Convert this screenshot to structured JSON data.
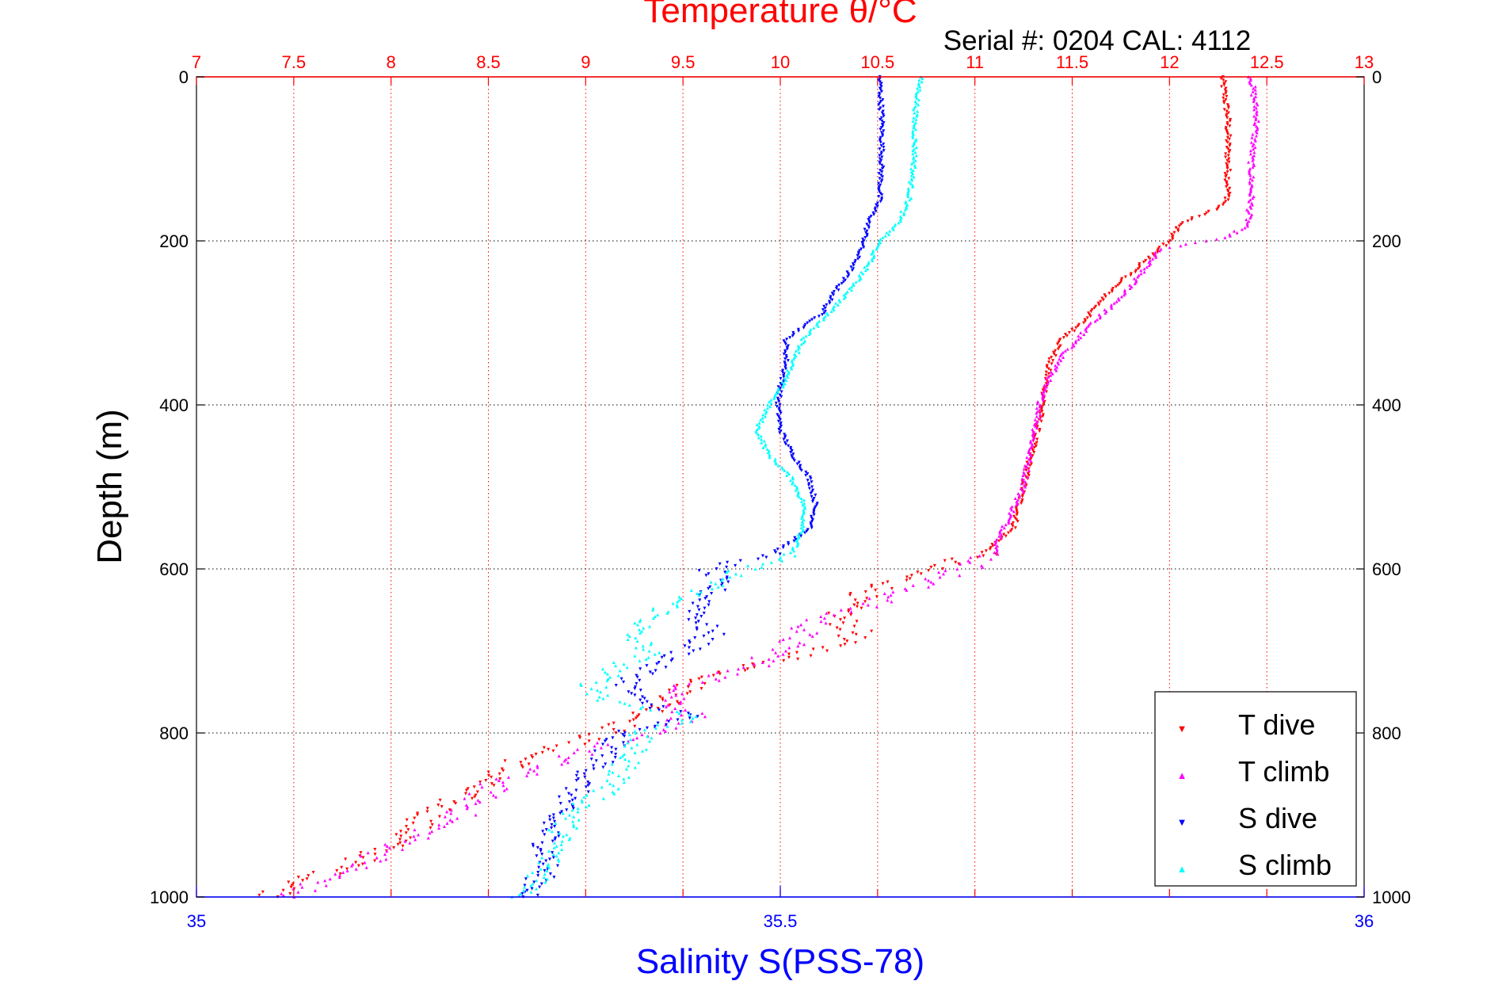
{
  "chart_data": {
    "type": "scatter",
    "title": "Temperature θ/°C",
    "annotation": "Serial #: 0204  CAL: 4112",
    "ylabel": "Depth (m)",
    "xlabel": "Salinity S(PSS-78)",
    "y_axis": {
      "range": [
        0,
        1000
      ],
      "reversed": true,
      "ticks": [
        0,
        200,
        400,
        600,
        800,
        1000
      ]
    },
    "x_top": {
      "label": "Temperature θ/°C",
      "range": [
        7,
        13
      ],
      "ticks": [
        7,
        7.5,
        8,
        8.5,
        9,
        9.5,
        10,
        10.5,
        11,
        11.5,
        12,
        12.5,
        13
      ],
      "tick_labels": [
        "7",
        "7.5",
        "8",
        "8.5",
        "9",
        "9.5",
        "10",
        "10.5",
        "11",
        "11.5",
        "12",
        "12.5",
        "13"
      ],
      "color": "#ff0000"
    },
    "x_bottom": {
      "label": "Salinity S(PSS-78)",
      "range": [
        35,
        36
      ],
      "ticks": [
        35,
        35.5,
        36
      ],
      "tick_labels": [
        "35",
        "35.5",
        "36"
      ],
      "color": "#0000ff"
    },
    "grid": true,
    "legend": {
      "placement": "bottom-right"
    },
    "series": [
      {
        "name": "T dive",
        "axis": "temperature",
        "marker": "triangle-down",
        "color": "#ff0000",
        "profile": [
          [
            0,
            12.27
          ],
          [
            50,
            12.3
          ],
          [
            100,
            12.3
          ],
          [
            150,
            12.3
          ],
          [
            160,
            12.25
          ],
          [
            180,
            12.05
          ],
          [
            200,
            12.0
          ],
          [
            230,
            11.85
          ],
          [
            260,
            11.7
          ],
          [
            300,
            11.55
          ],
          [
            320,
            11.45
          ],
          [
            350,
            11.38
          ],
          [
            400,
            11.35
          ],
          [
            450,
            11.3
          ],
          [
            500,
            11.25
          ],
          [
            550,
            11.2
          ],
          [
            580,
            11.05
          ],
          [
            600,
            10.75
          ],
          [
            620,
            10.55
          ],
          [
            640,
            10.35
          ],
          [
            660,
            10.3
          ],
          [
            680,
            10.4
          ],
          [
            700,
            10.2
          ],
          [
            720,
            9.85
          ],
          [
            740,
            9.55
          ],
          [
            760,
            9.45
          ],
          [
            780,
            9.3
          ],
          [
            800,
            9.1
          ],
          [
            830,
            8.7
          ],
          [
            870,
            8.4
          ],
          [
            900,
            8.2
          ],
          [
            930,
            8.05
          ],
          [
            960,
            7.8
          ],
          [
            990,
            7.45
          ],
          [
            1000,
            7.4
          ]
        ]
      },
      {
        "name": "T climb",
        "axis": "temperature",
        "marker": "triangle-up",
        "color": "#ff00ff",
        "profile": [
          [
            0,
            12.42
          ],
          [
            50,
            12.45
          ],
          [
            100,
            12.42
          ],
          [
            150,
            12.42
          ],
          [
            180,
            12.4
          ],
          [
            195,
            12.3
          ],
          [
            210,
            11.95
          ],
          [
            240,
            11.85
          ],
          [
            270,
            11.75
          ],
          [
            300,
            11.6
          ],
          [
            340,
            11.45
          ],
          [
            380,
            11.35
          ],
          [
            420,
            11.32
          ],
          [
            460,
            11.28
          ],
          [
            500,
            11.25
          ],
          [
            550,
            11.15
          ],
          [
            580,
            11.1
          ],
          [
            600,
            10.95
          ],
          [
            620,
            10.7
          ],
          [
            640,
            10.5
          ],
          [
            660,
            10.2
          ],
          [
            680,
            10.1
          ],
          [
            700,
            10.0
          ],
          [
            720,
            9.85
          ],
          [
            740,
            9.55
          ],
          [
            760,
            9.45
          ],
          [
            780,
            9.55
          ],
          [
            800,
            9.3
          ],
          [
            830,
            8.9
          ],
          [
            860,
            8.55
          ],
          [
            900,
            8.35
          ],
          [
            930,
            8.1
          ],
          [
            960,
            7.85
          ],
          [
            990,
            7.55
          ],
          [
            1000,
            7.45
          ]
        ]
      },
      {
        "name": "S dive",
        "axis": "salinity",
        "marker": "triangle-down",
        "color": "#0000ff",
        "profile": [
          [
            0,
            35.585
          ],
          [
            50,
            35.587
          ],
          [
            100,
            35.587
          ],
          [
            150,
            35.585
          ],
          [
            180,
            35.575
          ],
          [
            200,
            35.572
          ],
          [
            230,
            35.563
          ],
          [
            260,
            35.548
          ],
          [
            290,
            35.535
          ],
          [
            320,
            35.505
          ],
          [
            350,
            35.505
          ],
          [
            380,
            35.5
          ],
          [
            400,
            35.498
          ],
          [
            430,
            35.5
          ],
          [
            460,
            35.51
          ],
          [
            490,
            35.525
          ],
          [
            520,
            35.53
          ],
          [
            550,
            35.527
          ],
          [
            580,
            35.495
          ],
          [
            600,
            35.44
          ],
          [
            620,
            35.445
          ],
          [
            640,
            35.435
          ],
          [
            660,
            35.43
          ],
          [
            680,
            35.44
          ],
          [
            700,
            35.42
          ],
          [
            720,
            35.39
          ],
          [
            740,
            35.37
          ],
          [
            760,
            35.375
          ],
          [
            780,
            35.425
          ],
          [
            800,
            35.36
          ],
          [
            830,
            35.35
          ],
          [
            860,
            35.33
          ],
          [
            880,
            35.32
          ],
          [
            900,
            35.305
          ],
          [
            930,
            35.3
          ],
          [
            960,
            35.3
          ],
          [
            990,
            35.29
          ],
          [
            1000,
            35.285
          ]
        ]
      },
      {
        "name": "S climb",
        "axis": "salinity",
        "marker": "triangle-up",
        "color": "#00ffff",
        "profile": [
          [
            0,
            35.62
          ],
          [
            50,
            35.615
          ],
          [
            100,
            35.615
          ],
          [
            150,
            35.61
          ],
          [
            180,
            35.6
          ],
          [
            200,
            35.585
          ],
          [
            230,
            35.575
          ],
          [
            260,
            35.56
          ],
          [
            290,
            35.54
          ],
          [
            320,
            35.52
          ],
          [
            350,
            35.51
          ],
          [
            380,
            35.5
          ],
          [
            400,
            35.49
          ],
          [
            430,
            35.48
          ],
          [
            460,
            35.49
          ],
          [
            490,
            35.51
          ],
          [
            520,
            35.52
          ],
          [
            550,
            35.52
          ],
          [
            580,
            35.51
          ],
          [
            600,
            35.47
          ],
          [
            620,
            35.44
          ],
          [
            640,
            35.41
          ],
          [
            660,
            35.39
          ],
          [
            680,
            35.37
          ],
          [
            700,
            35.39
          ],
          [
            720,
            35.36
          ],
          [
            740,
            35.34
          ],
          [
            760,
            35.35
          ],
          [
            780,
            35.43
          ],
          [
            800,
            35.38
          ],
          [
            830,
            35.37
          ],
          [
            860,
            35.36
          ],
          [
            880,
            35.34
          ],
          [
            900,
            35.32
          ],
          [
            930,
            35.31
          ],
          [
            960,
            35.3
          ],
          [
            990,
            35.29
          ],
          [
            1000,
            35.28
          ]
        ]
      }
    ]
  }
}
